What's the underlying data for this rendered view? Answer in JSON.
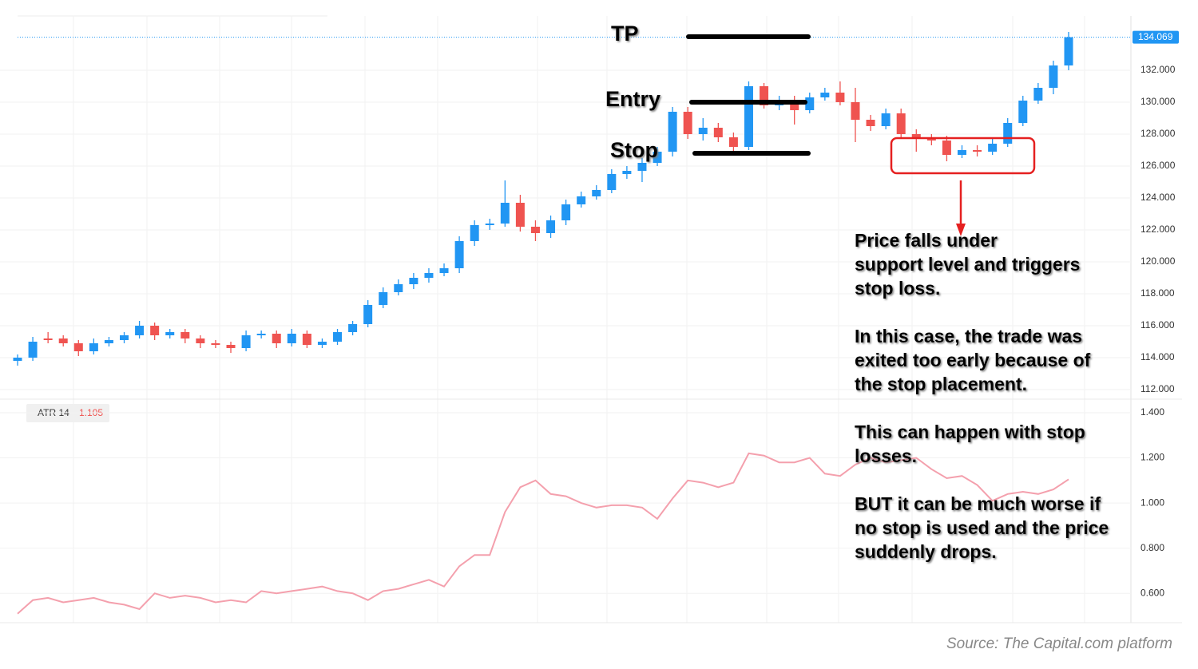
{
  "chart_data": {
    "type": "candlestick",
    "up_color": "#2196f3",
    "down_color": "#ef5350",
    "open": [
      113.8,
      114.0,
      115.2,
      115.2,
      114.9,
      114.4,
      114.9,
      115.1,
      115.4,
      116.0,
      115.4,
      115.6,
      115.2,
      114.9,
      114.8,
      114.6,
      115.4,
      115.5,
      114.9,
      115.5,
      114.8,
      115.0,
      115.6,
      116.1,
      117.3,
      118.1,
      118.6,
      119.0,
      119.3,
      119.6,
      121.3,
      122.3,
      122.4,
      123.7,
      122.2,
      121.8,
      122.6,
      123.6,
      124.1,
      124.5,
      125.5,
      125.7,
      126.2,
      126.9,
      129.4,
      128.0,
      128.4,
      127.8,
      127.2,
      131.0,
      129.8,
      130.1,
      129.5,
      130.3,
      130.6,
      130.0,
      128.9,
      128.5,
      129.3,
      128.0,
      127.7,
      127.6,
      126.7,
      127.0,
      126.9,
      127.4,
      128.7,
      130.1,
      130.9,
      132.3
    ],
    "high": [
      114.2,
      115.3,
      115.6,
      115.4,
      115.1,
      115.2,
      115.3,
      115.6,
      116.3,
      116.2,
      115.8,
      115.8,
      115.4,
      115.1,
      115.0,
      115.7,
      115.7,
      115.7,
      115.8,
      115.7,
      115.2,
      115.8,
      116.3,
      117.6,
      118.4,
      118.9,
      119.3,
      119.6,
      119.9,
      121.6,
      122.6,
      122.7,
      125.1,
      124.2,
      122.6,
      122.9,
      123.9,
      124.4,
      124.8,
      125.8,
      126.0,
      126.5,
      127.2,
      129.7,
      129.7,
      129.0,
      128.7,
      128.1,
      131.3,
      131.2,
      130.4,
      130.4,
      130.6,
      130.9,
      131.3,
      130.9,
      129.2,
      129.6,
      129.6,
      128.3,
      128.0,
      127.9,
      127.3,
      127.3,
      127.7,
      129.0,
      130.4,
      131.2,
      132.6,
      134.4
    ],
    "low": [
      113.5,
      113.8,
      114.9,
      114.7,
      114.1,
      114.2,
      114.7,
      114.9,
      115.2,
      115.1,
      115.2,
      114.9,
      114.6,
      114.6,
      114.3,
      114.4,
      115.2,
      114.6,
      114.7,
      114.6,
      114.6,
      114.8,
      115.4,
      115.9,
      117.1,
      117.9,
      118.3,
      118.7,
      119.1,
      119.3,
      121.0,
      122.0,
      122.2,
      121.9,
      121.3,
      121.5,
      122.3,
      123.4,
      123.9,
      124.3,
      125.2,
      125.0,
      126.0,
      126.6,
      127.7,
      127.6,
      127.5,
      126.9,
      127.0,
      129.6,
      129.5,
      128.6,
      129.3,
      130.1,
      129.8,
      127.5,
      128.2,
      128.3,
      127.7,
      126.9,
      127.3,
      126.3,
      126.5,
      126.6,
      126.7,
      127.2,
      128.5,
      129.9,
      130.5,
      132.0
    ],
    "close": [
      114.0,
      115.0,
      115.1,
      114.9,
      114.4,
      114.9,
      115.1,
      115.4,
      116.0,
      115.4,
      115.6,
      115.2,
      114.9,
      114.8,
      114.6,
      115.4,
      115.5,
      114.9,
      115.5,
      114.8,
      115.0,
      115.6,
      116.1,
      117.3,
      118.1,
      118.6,
      119.0,
      119.3,
      119.6,
      121.3,
      122.3,
      122.4,
      123.7,
      122.2,
      121.8,
      122.6,
      123.6,
      124.1,
      124.5,
      125.5,
      125.7,
      126.2,
      126.9,
      129.4,
      128.0,
      128.4,
      127.8,
      127.2,
      131.0,
      129.8,
      130.1,
      129.5,
      130.3,
      130.6,
      130.0,
      128.9,
      128.5,
      129.3,
      128.0,
      127.7,
      127.6,
      126.7,
      127.0,
      126.9,
      127.4,
      128.7,
      130.1,
      130.9,
      132.3,
      134.069
    ],
    "ylim": [
      111.4,
      135.4
    ],
    "yticks": [
      {
        "value": 112,
        "label": "112.000"
      },
      {
        "value": 114,
        "label": "114.000"
      },
      {
        "value": 116,
        "label": "116.000"
      },
      {
        "value": 118,
        "label": "118.000"
      },
      {
        "value": 120,
        "label": "120.000"
      },
      {
        "value": 122,
        "label": "122.000"
      },
      {
        "value": 124,
        "label": "124.000"
      },
      {
        "value": 126,
        "label": "126.000"
      },
      {
        "value": 128,
        "label": "128.000"
      },
      {
        "value": 130,
        "label": "130.000"
      },
      {
        "value": 132,
        "label": "132.000"
      }
    ],
    "grid": true,
    "levels": [
      {
        "label": "TP",
        "value": 134.1
      },
      {
        "label": "Entry",
        "value": 130.0
      },
      {
        "label": "Stop",
        "value": 126.8
      }
    ],
    "atr": {
      "name": "ATR 14",
      "color": "#f4a0ad",
      "values": [
        0.51,
        0.57,
        0.58,
        0.56,
        0.57,
        0.58,
        0.56,
        0.55,
        0.53,
        0.6,
        0.58,
        0.59,
        0.58,
        0.56,
        0.57,
        0.56,
        0.61,
        0.6,
        0.61,
        0.62,
        0.63,
        0.61,
        0.6,
        0.57,
        0.61,
        0.62,
        0.64,
        0.66,
        0.63,
        0.72,
        0.77,
        0.77,
        0.96,
        1.07,
        1.1,
        1.04,
        1.03,
        1.0,
        0.98,
        0.99,
        0.99,
        0.98,
        0.93,
        1.02,
        1.1,
        1.09,
        1.07,
        1.09,
        1.22,
        1.21,
        1.18,
        1.18,
        1.2,
        1.13,
        1.12,
        1.17,
        1.2,
        1.18,
        1.19,
        1.2,
        1.15,
        1.11,
        1.12,
        1.08,
        1.01,
        1.04,
        1.05,
        1.04,
        1.06,
        1.105
      ],
      "ylim": [
        0.47,
        1.46
      ],
      "yticks": [
        {
          "value": 0.6,
          "label": "0.600"
        },
        {
          "value": 0.8,
          "label": "0.800"
        },
        {
          "value": 1.0,
          "label": "1.000"
        },
        {
          "value": 1.2,
          "label": "1.200"
        },
        {
          "value": 1.4,
          "label": "1.400"
        }
      ]
    },
    "note": [
      [
        "Price falls under",
        "support level and triggers",
        "stop loss."
      ],
      [
        "In this case, the trade was",
        "exited too early because of",
        "the stop placement."
      ],
      [
        "This can happen with stop",
        "losses."
      ],
      [
        "BUT it can be much worse if",
        "no stop is used and the price",
        "suddenly drops."
      ]
    ],
    "source": "Source: The Capital.com platform"
  }
}
